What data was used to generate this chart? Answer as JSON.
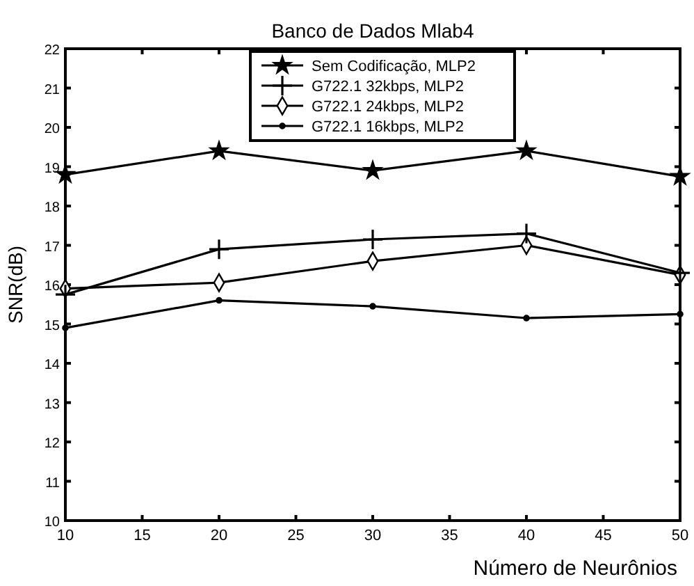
{
  "chart_data": {
    "type": "line",
    "title": "Banco de Dados Mlab4",
    "xlabel": "Número de Neurônios",
    "ylabel": "SNR(dB)",
    "x": [
      10,
      20,
      30,
      40,
      50
    ],
    "series": [
      {
        "name": "Sem Codificação, MLP2",
        "color": "#000000",
        "marker": "star",
        "values": [
          18.8,
          19.4,
          18.9,
          19.4,
          18.75
        ]
      },
      {
        "name": "G722.1 32kbps, MLP2",
        "color": "#000000",
        "marker": "cross",
        "values": [
          15.75,
          16.9,
          17.15,
          17.3,
          16.3
        ]
      },
      {
        "name": "G722.1 24kbps, MLP2",
        "color": "#000000",
        "marker": "diamond",
        "values": [
          15.9,
          16.05,
          16.6,
          17.0,
          16.25
        ]
      },
      {
        "name": "G722.1 16kbps, MLP2",
        "color": "#000000",
        "marker": "circle",
        "values": [
          14.9,
          15.6,
          15.45,
          15.15,
          15.25
        ]
      }
    ],
    "xlim": [
      10,
      50
    ],
    "xticks": [
      10,
      15,
      20,
      25,
      30,
      35,
      40,
      45,
      50
    ],
    "ylim": [
      10,
      22
    ],
    "yticks": [
      10,
      11,
      12,
      13,
      14,
      15,
      16,
      17,
      18,
      19,
      20,
      21,
      22
    ],
    "legend": "top",
    "grid": false,
    "line_style": "solid"
  }
}
